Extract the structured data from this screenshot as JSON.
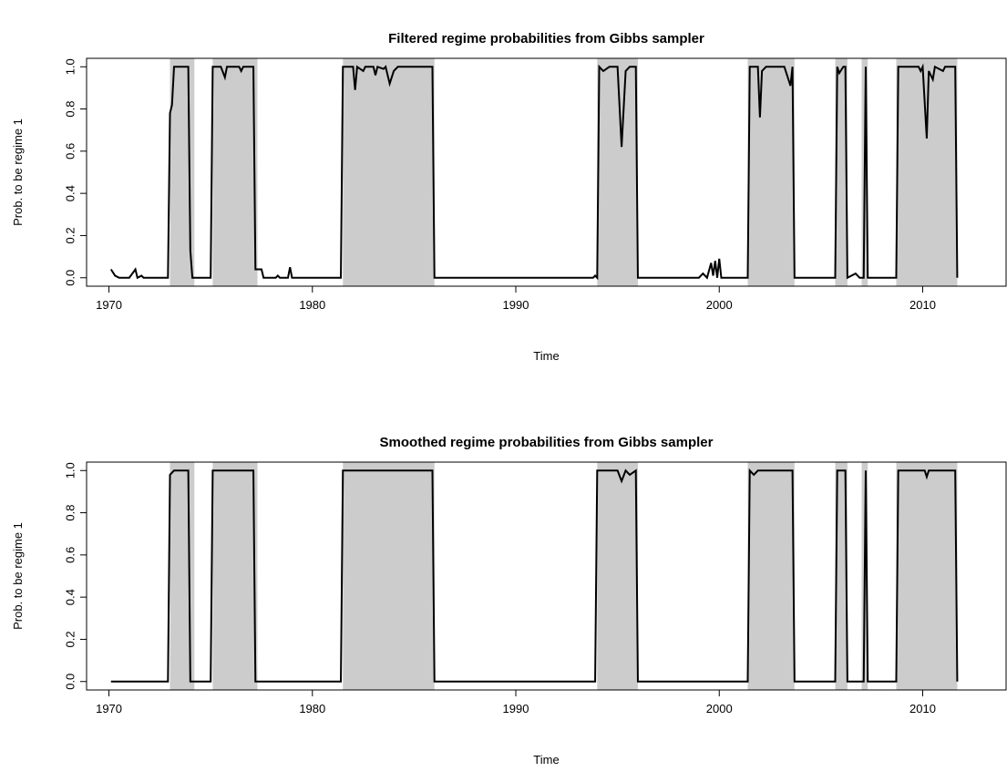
{
  "chart_data": [
    {
      "type": "line",
      "title": "Filtered regime probabilities from Gibbs sampler",
      "xlabel": "Time",
      "ylabel": "Prob. to be regime 1",
      "color": "#000000",
      "shade_color": "#cccccc",
      "xlim": [
        1968.9,
        2014.1
      ],
      "ylim": [
        -0.04,
        1.04
      ],
      "xticks": [
        1970,
        1980,
        1990,
        2000,
        2010
      ],
      "yticks": [
        {
          "value": 0,
          "label": "0.0"
        },
        {
          "value": 0.2,
          "label": "0.2"
        },
        {
          "value": 0.4,
          "label": "0.4"
        },
        {
          "value": 0.6,
          "label": "0.6"
        },
        {
          "value": 0.8,
          "label": "0.8"
        },
        {
          "value": 1,
          "label": "1.0"
        }
      ],
      "shaded": [
        [
          1973.0,
          1974.2
        ],
        [
          1975.1,
          1977.3
        ],
        [
          1981.5,
          1986.0
        ],
        [
          1994.0,
          1996.0
        ],
        [
          2001.4,
          2003.7
        ],
        [
          2005.7,
          2006.3
        ],
        [
          2007.0,
          2007.3
        ],
        [
          2008.7,
          2011.7
        ]
      ],
      "x": [
        1970.1,
        1970.3,
        1970.5,
        1971.0,
        1971.3,
        1971.4,
        1971.6,
        1971.7,
        1972.9,
        1973.0,
        1973.1,
        1973.2,
        1973.9,
        1974.0,
        1974.1,
        1975.0,
        1975.1,
        1975.5,
        1975.7,
        1975.8,
        1976.4,
        1976.5,
        1976.6,
        1977.1,
        1977.2,
        1977.5,
        1977.6,
        1978.2,
        1978.3,
        1978.4,
        1978.8,
        1978.9,
        1979.0,
        1981.4,
        1981.5,
        1982.0,
        1982.1,
        1982.2,
        1982.5,
        1982.6,
        1983.0,
        1983.1,
        1983.2,
        1983.5,
        1983.6,
        1983.8,
        1984.0,
        1984.2,
        1985.9,
        1986.0,
        1993.8,
        1993.9,
        1994.0,
        1994.1,
        1994.3,
        1994.6,
        1995.0,
        1995.2,
        1995.4,
        1995.6,
        1995.9,
        1996.0,
        1999.0,
        1999.2,
        1999.4,
        1999.6,
        1999.7,
        1999.8,
        1999.9,
        2000.0,
        2000.1,
        2001.4,
        2001.5,
        2001.9,
        2002.0,
        2002.1,
        2002.3,
        2003.2,
        2003.5,
        2003.6,
        2003.7,
        2005.7,
        2005.8,
        2005.9,
        2006.1,
        2006.2,
        2006.3,
        2006.7,
        2006.9,
        2007.1,
        2007.2,
        2007.3,
        2008.0,
        2008.7,
        2008.8,
        2009.8,
        2009.9,
        2010.0,
        2010.2,
        2010.3,
        2010.5,
        2010.6,
        2011.0,
        2011.1,
        2011.6,
        2011.7
      ],
      "values": [
        0.04,
        0.01,
        0.0,
        0.0,
        0.04,
        0.0,
        0.01,
        0.0,
        0.0,
        0.78,
        0.82,
        1.0,
        1.0,
        0.13,
        0.0,
        0.0,
        1.0,
        1.0,
        0.95,
        1.0,
        1.0,
        0.98,
        1.0,
        1.0,
        0.04,
        0.04,
        0.0,
        0.0,
        0.01,
        0.0,
        0.0,
        0.05,
        0.0,
        0.0,
        1.0,
        1.0,
        0.89,
        1.0,
        0.98,
        1.0,
        1.0,
        0.96,
        1.0,
        0.99,
        1.0,
        0.92,
        0.98,
        1.0,
        1.0,
        0.0,
        0.0,
        0.01,
        0.0,
        1.0,
        0.98,
        1.0,
        1.0,
        0.62,
        0.98,
        1.0,
        1.0,
        0.0,
        0.0,
        0.02,
        0.0,
        0.07,
        0.01,
        0.08,
        0.0,
        0.09,
        0.0,
        0.0,
        1.0,
        1.0,
        0.76,
        0.98,
        1.0,
        1.0,
        0.91,
        1.0,
        0.0,
        0.0,
        1.0,
        0.97,
        1.0,
        1.0,
        0.0,
        0.02,
        0.0,
        0.0,
        1.0,
        0.0,
        0.0,
        0.0,
        1.0,
        1.0,
        0.98,
        1.0,
        0.66,
        0.98,
        0.94,
        1.0,
        0.98,
        1.0,
        1.0,
        0.0
      ]
    },
    {
      "type": "line",
      "title": "Smoothed regime probabilities from Gibbs sampler",
      "xlabel": "Time",
      "ylabel": "Prob. to be regime 1",
      "color": "#000000",
      "shade_color": "#cccccc",
      "xlim": [
        1968.9,
        2014.1
      ],
      "ylim": [
        -0.04,
        1.04
      ],
      "xticks": [
        1970,
        1980,
        1990,
        2000,
        2010
      ],
      "yticks": [
        {
          "value": 0,
          "label": "0.0"
        },
        {
          "value": 0.2,
          "label": "0.2"
        },
        {
          "value": 0.4,
          "label": "0.4"
        },
        {
          "value": 0.6,
          "label": "0.6"
        },
        {
          "value": 0.8,
          "label": "0.8"
        },
        {
          "value": 1,
          "label": "1.0"
        }
      ],
      "shaded": [
        [
          1973.0,
          1974.2
        ],
        [
          1975.1,
          1977.3
        ],
        [
          1981.5,
          1986.0
        ],
        [
          1994.0,
          1996.0
        ],
        [
          2001.4,
          2003.7
        ],
        [
          2005.7,
          2006.3
        ],
        [
          2007.0,
          2007.3
        ],
        [
          2008.7,
          2011.7
        ]
      ],
      "x": [
        1970.1,
        1972.9,
        1973.0,
        1973.2,
        1973.9,
        1974.0,
        1975.0,
        1975.1,
        1977.1,
        1977.2,
        1981.4,
        1981.5,
        1985.9,
        1986.0,
        1993.9,
        1994.0,
        1995.0,
        1995.2,
        1995.4,
        1995.6,
        1995.9,
        1996.0,
        2001.4,
        2001.5,
        2001.7,
        2001.9,
        2003.6,
        2003.7,
        2005.7,
        2005.8,
        2006.2,
        2006.3,
        2007.1,
        2007.2,
        2007.3,
        2008.7,
        2008.8,
        2010.1,
        2010.2,
        2010.3,
        2011.6,
        2011.7
      ],
      "values": [
        0.0,
        0.0,
        0.98,
        1.0,
        1.0,
        0.0,
        0.0,
        1.0,
        1.0,
        0.0,
        0.0,
        1.0,
        1.0,
        0.0,
        0.0,
        1.0,
        1.0,
        0.95,
        1.0,
        0.98,
        1.0,
        0.0,
        0.0,
        1.0,
        0.98,
        1.0,
        1.0,
        0.0,
        0.0,
        1.0,
        1.0,
        0.0,
        0.0,
        1.0,
        0.0,
        0.0,
        1.0,
        1.0,
        0.97,
        1.0,
        1.0,
        0.0
      ]
    }
  ]
}
